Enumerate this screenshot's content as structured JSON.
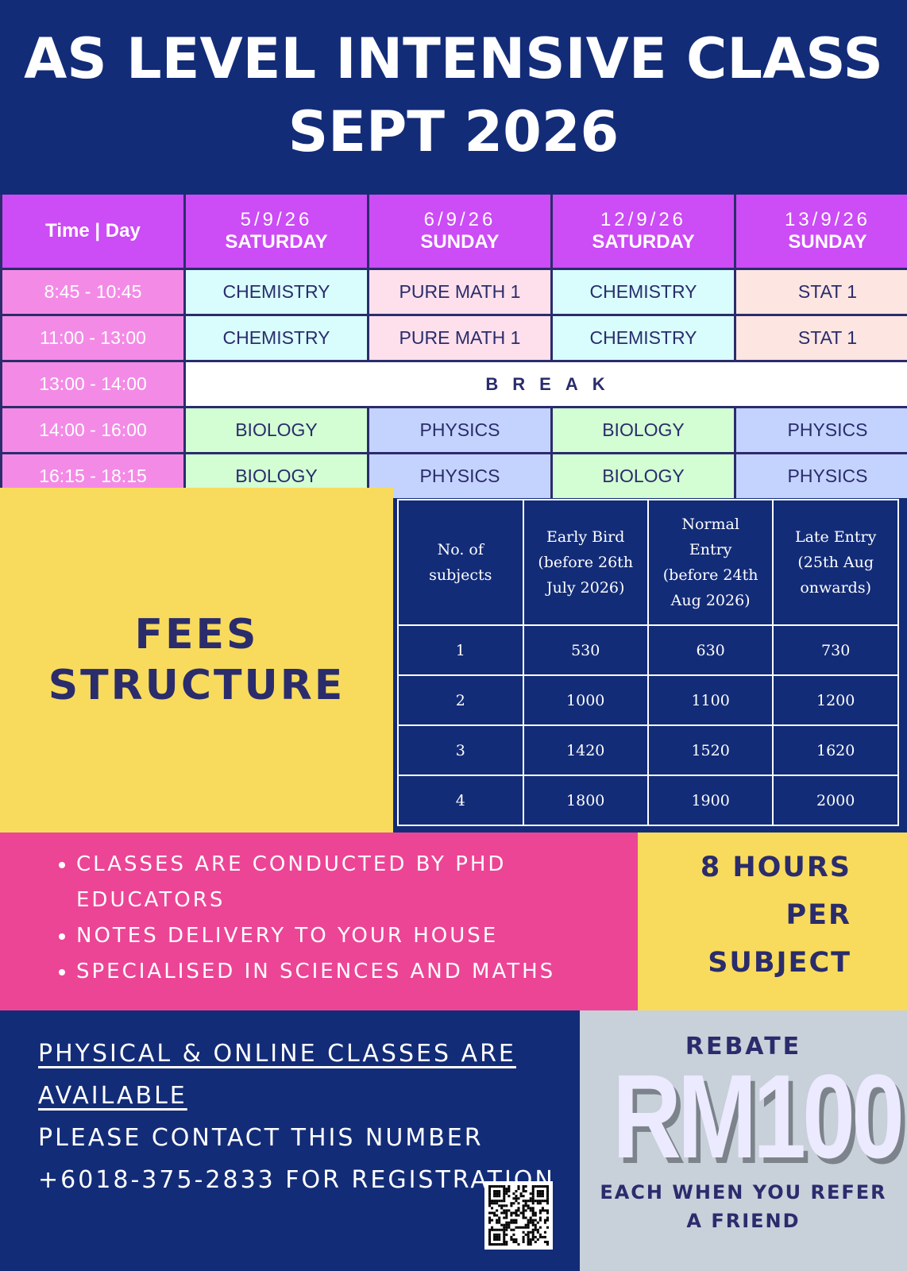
{
  "title": {
    "line1": "AS LEVEL INTENSIVE CLASS",
    "line2": "SEPT 2026"
  },
  "schedule": {
    "corner": "Time | Day",
    "days": [
      {
        "date": "5/9/26",
        "day": "SATURDAY"
      },
      {
        "date": "6/9/26",
        "day": "SUNDAY"
      },
      {
        "date": "12/9/26",
        "day": "SATURDAY"
      },
      {
        "date": "13/9/26",
        "day": "SUNDAY"
      }
    ],
    "rows": [
      {
        "time": "8:45 - 10:45",
        "cells": [
          "CHEMISTRY",
          "PURE MATH 1",
          "CHEMISTRY",
          "STAT 1"
        ]
      },
      {
        "time": "11:00 - 13:00",
        "cells": [
          "CHEMISTRY",
          "PURE MATH 1",
          "CHEMISTRY",
          "STAT 1"
        ]
      },
      {
        "time": "13:00 - 14:00",
        "break": "BREAK"
      },
      {
        "time": "14:00 - 16:00",
        "cells": [
          "BIOLOGY",
          "PHYSICS",
          "BIOLOGY",
          "PHYSICS"
        ]
      },
      {
        "time": "16:15 - 18:15",
        "cells": [
          "BIOLOGY",
          "PHYSICS",
          "BIOLOGY",
          "PHYSICS"
        ]
      }
    ],
    "subject_colors": {
      "CHEMISTRY": "#d9fdfd",
      "PURE MATH 1": "#fde0ec",
      "STAT 1": "#fde5e1",
      "BIOLOGY": "#d3fdd3",
      "PHYSICS": "#c4d3fd"
    }
  },
  "fees": {
    "heading_line1": "FEES",
    "heading_line2": "STRUCTURE",
    "headers": [
      "No. of subjects",
      "Early Bird (before 26th July 2026)",
      "Normal Entry (before 24th Aug 2026)",
      "Late Entry (25th Aug onwards)"
    ],
    "rows": [
      [
        "1",
        "530",
        "630",
        "730"
      ],
      [
        "2",
        "1000",
        "1100",
        "1200"
      ],
      [
        "3",
        "1420",
        "1520",
        "1620"
      ],
      [
        "4",
        "1800",
        "1900",
        "2000"
      ]
    ]
  },
  "features": [
    "CLASSES ARE CONDUCTED BY PHD EDUCATORS",
    "NOTES DELIVERY TO YOUR HOUSE",
    "SPECIALISED IN SCIENCES AND MATHS"
  ],
  "hours": {
    "line1": "8 HOURS",
    "line2": "PER",
    "line3": "SUBJECT"
  },
  "contact": {
    "underlined": "PHYSICAL & ONLINE CLASSES ARE AVAILABLE",
    "text": "PLEASE CONTACT THIS NUMBER +6018-375-2833 FOR REGISTRATION"
  },
  "rebate": {
    "label": "REBATE",
    "amount": "RM100",
    "note": "EACH WHEN YOU REFER A FRIEND"
  },
  "colors": {
    "navy": "#132c78",
    "purple": "#cc4cf5",
    "pink": "#ec4596",
    "yellow": "#f8db5d",
    "gray": "#c8d0da"
  },
  "qr_icon": "qr-code-icon"
}
